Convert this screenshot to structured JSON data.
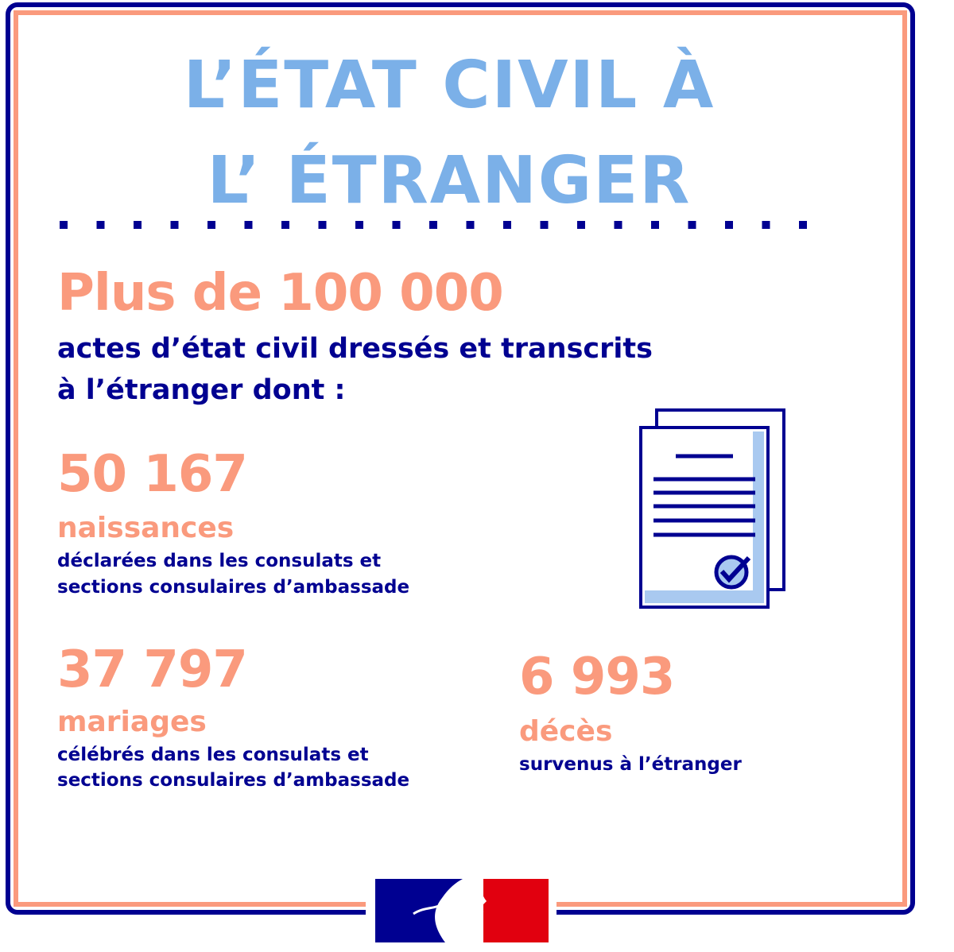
{
  "title": {
    "line1": "L’ÉTAT CIVIL À",
    "line2": "L’ ÉTRANGER"
  },
  "headline": {
    "number": "Plus de 100 000",
    "description": [
      "actes d’état civil dressés et transcrits",
      "à l’étranger dont :"
    ]
  },
  "stats": [
    {
      "number": "50 167",
      "label": "naissances",
      "description": [
        "déclarées dans les consulats et",
        "sections consulaires d’ambassade"
      ]
    },
    {
      "number": "37 797",
      "label": "mariages",
      "description": [
        "célébrés dans les consulats et",
        "sections consulaires d’ambassade"
      ]
    },
    {
      "number": "6 993",
      "label": "décès",
      "description": [
        "survenus à l’étranger"
      ]
    }
  ]
}
